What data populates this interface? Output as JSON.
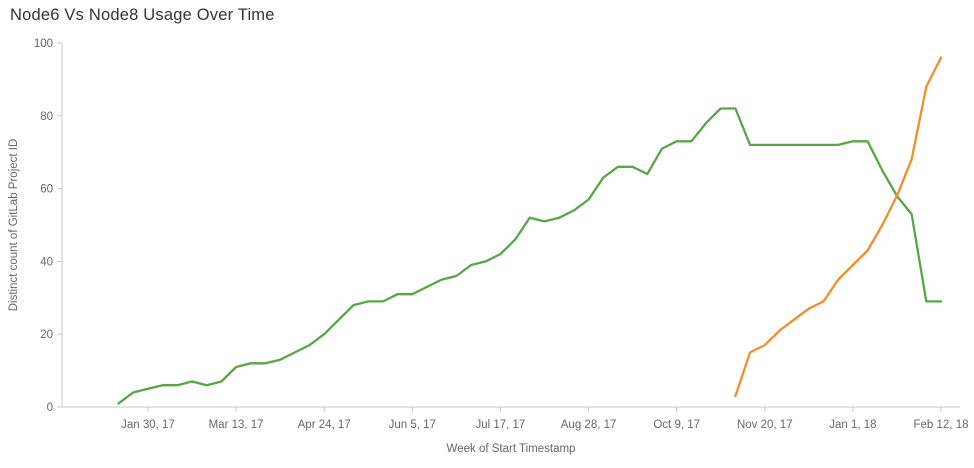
{
  "chart_data": {
    "type": "line",
    "title": "Node6 Vs Node8 Usage Over Time",
    "xlabel": "Week of Start Timestamp",
    "ylabel": "Distinct count of GitLab Project ID",
    "ylim": [
      0,
      100
    ],
    "y_ticks": [
      0,
      20,
      40,
      60,
      80,
      100
    ],
    "grid": false,
    "legend": "none",
    "x": [
      "Jan 16, 17",
      "Jan 23, 17",
      "Jan 30, 17",
      "Feb 6, 17",
      "Feb 13, 17",
      "Feb 20, 17",
      "Feb 27, 17",
      "Mar 6, 17",
      "Mar 13, 17",
      "Mar 20, 17",
      "Mar 27, 17",
      "Apr 3, 17",
      "Apr 10, 17",
      "Apr 17, 17",
      "Apr 24, 17",
      "May 1, 17",
      "May 8, 17",
      "May 15, 17",
      "May 22, 17",
      "May 29, 17",
      "Jun 5, 17",
      "Jun 12, 17",
      "Jun 19, 17",
      "Jun 26, 17",
      "Jul 3, 17",
      "Jul 10, 17",
      "Jul 17, 17",
      "Jul 24, 17",
      "Jul 31, 17",
      "Aug 7, 17",
      "Aug 14, 17",
      "Aug 21, 17",
      "Aug 28, 17",
      "Sep 4, 17",
      "Sep 11, 17",
      "Sep 18, 17",
      "Sep 25, 17",
      "Oct 2, 17",
      "Oct 9, 17",
      "Oct 16, 17",
      "Oct 23, 17",
      "Oct 30, 17",
      "Nov 6, 17",
      "Nov 13, 17",
      "Nov 20, 17",
      "Nov 27, 17",
      "Dec 4, 17",
      "Dec 11, 17",
      "Dec 18, 17",
      "Dec 25, 17",
      "Jan 1, 18",
      "Jan 8, 18",
      "Jan 15, 18",
      "Jan 22, 18",
      "Jan 29, 18",
      "Feb 5, 18",
      "Feb 12, 18"
    ],
    "x_tick_labels": [
      "Jan 30, 17",
      "Mar 13, 17",
      "Apr 24, 17",
      "Jun 5, 17",
      "Jul 17, 17",
      "Aug 28, 17",
      "Oct 9, 17",
      "Nov 20, 17",
      "Jan 1, 18",
      "Feb 12, 18"
    ],
    "x_tick_indices": [
      2,
      8,
      14,
      20,
      26,
      32,
      38,
      44,
      50,
      56
    ],
    "series": [
      {
        "name": "Node6",
        "color": "#5aa546",
        "values": [
          1,
          4,
          5,
          6,
          6,
          7,
          6,
          7,
          11,
          12,
          12,
          13,
          15,
          17,
          20,
          24,
          28,
          29,
          29,
          31,
          31,
          33,
          35,
          36,
          39,
          40,
          42,
          46,
          52,
          51,
          52,
          54,
          57,
          63,
          66,
          66,
          64,
          71,
          73,
          73,
          78,
          82,
          82,
          72,
          72,
          72,
          72,
          72,
          72,
          72,
          73,
          73,
          65,
          58,
          53,
          29,
          29
        ]
      },
      {
        "name": "Node8",
        "color": "#f28e2b",
        "values": [
          null,
          null,
          null,
          null,
          null,
          null,
          null,
          null,
          null,
          null,
          null,
          null,
          null,
          null,
          null,
          null,
          null,
          null,
          null,
          null,
          null,
          null,
          null,
          null,
          null,
          null,
          null,
          null,
          null,
          null,
          null,
          null,
          null,
          null,
          null,
          null,
          null,
          null,
          null,
          null,
          null,
          null,
          3,
          15,
          17,
          21,
          24,
          27,
          29,
          35,
          39,
          43,
          50,
          58,
          68,
          88,
          96
        ]
      }
    ]
  }
}
